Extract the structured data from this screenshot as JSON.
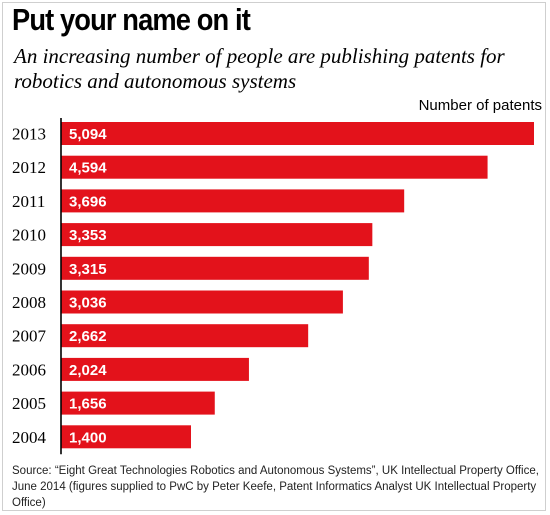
{
  "title": "Put your name on it",
  "subtitle": "An increasing number of people are publishing patents for robotics and autonomous systems",
  "source": "Source: “Eight Great Technologies Robotics and Autonomous Systems”, UK Intellectual Property Office, June 2014 (figures supplied to PwC by Peter Keefe, Patent Informatics Analyst UK Intellectual Property Office)",
  "colors": {
    "bar": "#e3121b",
    "axis": "#000000",
    "bar_label": "#ffffff"
  },
  "chart_data": {
    "type": "bar",
    "orientation": "horizontal",
    "xlabel": "Number of patents",
    "categories": [
      "2013",
      "2012",
      "2011",
      "2010",
      "2009",
      "2008",
      "2007",
      "2006",
      "2005",
      "2004"
    ],
    "values": [
      5094,
      4594,
      3696,
      3353,
      3315,
      3036,
      2662,
      2024,
      1656,
      1400
    ],
    "value_labels": [
      "5,094",
      "4,594",
      "3,696",
      "3,353",
      "3,315",
      "3,036",
      "2,662",
      "2,024",
      "1,656",
      "1,400"
    ],
    "xlim": [
      0,
      5094
    ],
    "grid": false
  }
}
